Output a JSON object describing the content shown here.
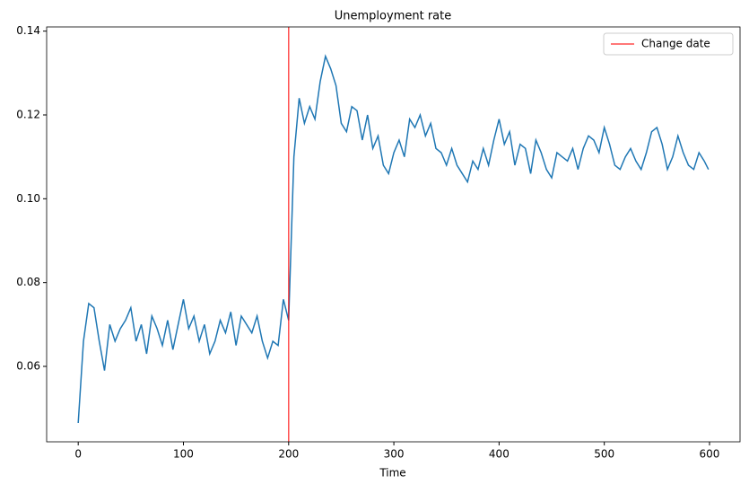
{
  "chart_data": {
    "type": "line",
    "title": "Unemployment rate",
    "xlabel": "Time",
    "x": [
      0,
      5,
      10,
      15,
      20,
      25,
      30,
      35,
      40,
      45,
      50,
      55,
      60,
      65,
      70,
      75,
      80,
      85,
      90,
      95,
      100,
      105,
      110,
      115,
      120,
      125,
      130,
      135,
      140,
      145,
      150,
      155,
      160,
      165,
      170,
      175,
      180,
      185,
      190,
      195,
      200,
      205,
      210,
      215,
      220,
      225,
      230,
      235,
      240,
      245,
      250,
      255,
      260,
      265,
      270,
      275,
      280,
      285,
      290,
      295,
      300,
      305,
      310,
      315,
      320,
      325,
      330,
      335,
      340,
      345,
      350,
      355,
      360,
      365,
      370,
      375,
      380,
      385,
      390,
      395,
      400,
      405,
      410,
      415,
      420,
      425,
      430,
      435,
      440,
      445,
      450,
      455,
      460,
      465,
      470,
      475,
      480,
      485,
      490,
      495,
      500,
      505,
      510,
      515,
      520,
      525,
      530,
      535,
      540,
      545,
      550,
      555,
      560,
      565,
      570,
      575,
      580,
      585,
      590,
      595,
      599
    ],
    "series": [
      {
        "color": "#1f77b4",
        "values": [
          0.0465,
          0.066,
          0.075,
          0.074,
          0.066,
          0.059,
          0.07,
          0.066,
          0.069,
          0.071,
          0.074,
          0.066,
          0.07,
          0.063,
          0.072,
          0.069,
          0.065,
          0.071,
          0.064,
          0.07,
          0.076,
          0.069,
          0.072,
          0.066,
          0.07,
          0.063,
          0.066,
          0.071,
          0.068,
          0.073,
          0.065,
          0.072,
          0.07,
          0.068,
          0.072,
          0.066,
          0.062,
          0.066,
          0.065,
          0.076,
          0.071,
          0.11,
          0.124,
          0.118,
          0.122,
          0.119,
          0.128,
          0.134,
          0.131,
          0.127,
          0.118,
          0.116,
          0.122,
          0.121,
          0.114,
          0.12,
          0.112,
          0.115,
          0.108,
          0.106,
          0.111,
          0.114,
          0.11,
          0.119,
          0.117,
          0.12,
          0.115,
          0.118,
          0.112,
          0.111,
          0.108,
          0.112,
          0.108,
          0.106,
          0.104,
          0.109,
          0.107,
          0.112,
          0.108,
          0.114,
          0.119,
          0.113,
          0.116,
          0.108,
          0.113,
          0.112,
          0.106,
          0.114,
          0.111,
          0.107,
          0.105,
          0.111,
          0.11,
          0.109,
          0.112,
          0.107,
          0.112,
          0.115,
          0.114,
          0.111,
          0.117,
          0.113,
          0.108,
          0.107,
          0.11,
          0.112,
          0.109,
          0.107,
          0.111,
          0.116,
          0.117,
          0.113,
          0.107,
          0.11,
          0.115,
          0.111,
          0.108,
          0.107,
          0.111,
          0.109,
          0.107
        ]
      }
    ],
    "vlines": [
      {
        "x": 200,
        "name": "Change date",
        "color": "#ff0000"
      }
    ],
    "xlim": [
      -30,
      629
    ],
    "xticks": [
      0,
      100,
      200,
      300,
      400,
      500,
      600
    ],
    "ylim": [
      0.042,
      0.141
    ],
    "yticks": [
      0.06,
      0.08,
      {
        "value": 0.1,
        "label": "0.10"
      },
      0.12,
      0.14
    ],
    "legend": "upper right"
  }
}
